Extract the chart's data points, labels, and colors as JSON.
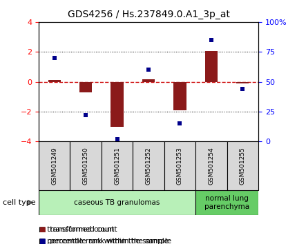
{
  "title": "GDS4256 / Hs.237849.0.A1_3p_at",
  "samples": [
    "GSM501249",
    "GSM501250",
    "GSM501251",
    "GSM501252",
    "GSM501253",
    "GSM501254",
    "GSM501255"
  ],
  "transformed_count": [
    0.1,
    -0.7,
    -3.0,
    0.15,
    -1.9,
    2.05,
    -0.1
  ],
  "percentile_rank": [
    70,
    22,
    2,
    60,
    15,
    85,
    44
  ],
  "ylim_left": [
    -4,
    4
  ],
  "ylim_right": [
    0,
    100
  ],
  "bar_color": "#8B1A1A",
  "dot_color": "#00008B",
  "dashed_line_color": "#CC0000",
  "grid_color": "black",
  "cell_type_groups": [
    {
      "label": "caseous TB granulomas",
      "start": 0,
      "end": 4,
      "color": "#b8f0b8"
    },
    {
      "label": "normal lung\nparenchyma",
      "start": 5,
      "end": 6,
      "color": "#66cc66"
    }
  ],
  "legend_items": [
    {
      "label": "transformed count",
      "color": "#8B1A1A"
    },
    {
      "label": "percentile rank within the sample",
      "color": "#00008B"
    }
  ],
  "cell_type_label": "cell type",
  "yticks_left": [
    -4,
    -2,
    0,
    2,
    4
  ],
  "yticks_right": [
    0,
    25,
    50,
    75,
    100
  ],
  "ytick_labels_right": [
    "0",
    "25",
    "50",
    "75",
    "100%"
  ],
  "bar_width": 0.4
}
